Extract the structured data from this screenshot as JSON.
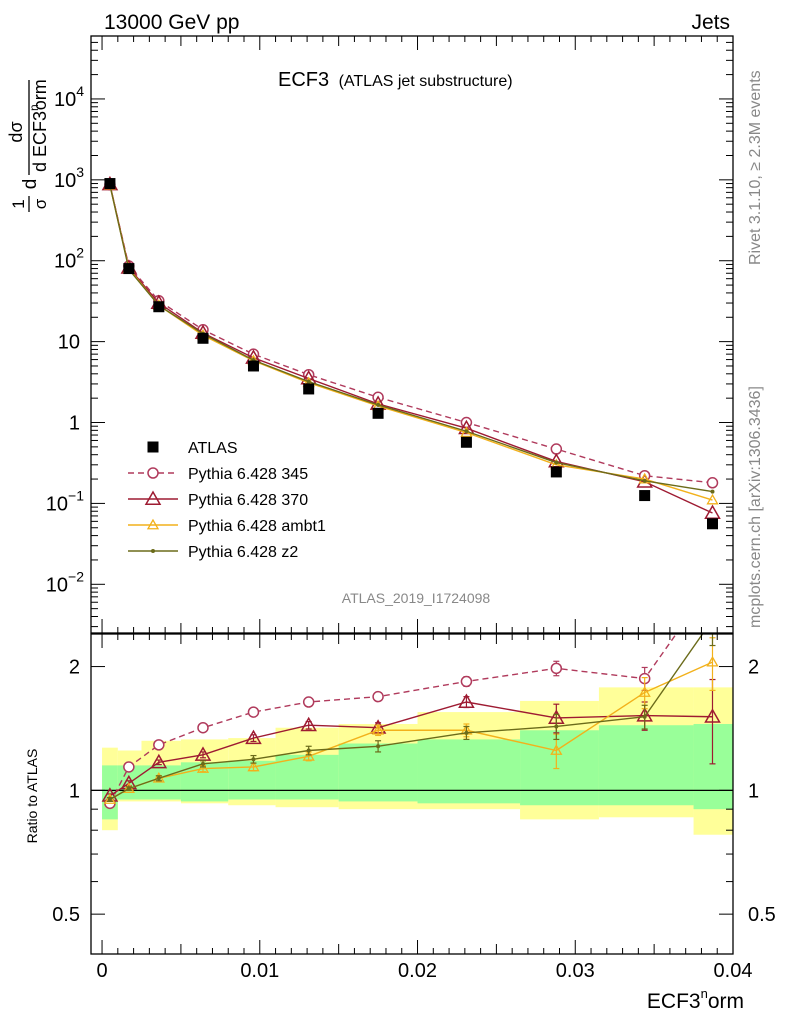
{
  "header": {
    "left": "13000 GeV pp",
    "right": "Jets"
  },
  "side": {
    "rivet": "Rivet 3.1.10, ≥ 2.3M events",
    "mcplots": "mcplots.cern.ch [arXiv:1306.3436]"
  },
  "main_title": "ECF3",
  "main_subtitle": "(ATLAS jet substructure)",
  "analysis_id": "ATLAS_2019_I1724098",
  "ylabel": {
    "frac_num": "1",
    "frac_den": "σ",
    "d_top": "d",
    "dsigma": "dσ",
    "d_ecf": "d ECF3",
    "sup": "n",
    "orm": "orm"
  },
  "xlabel": {
    "base": "ECF3",
    "sup": "n",
    "orm": "orm"
  },
  "ratio_label": "Ratio to ATLAS",
  "upper_ticks": [
    {
      "v": 0.01,
      "base": "10",
      "exp": "−2"
    },
    {
      "v": 0.1,
      "base": "10",
      "exp": "−1"
    },
    {
      "v": 1,
      "base": "1",
      "exp": ""
    },
    {
      "v": 10,
      "base": "10",
      "exp": ""
    },
    {
      "v": 100,
      "base": "10",
      "exp": "2"
    },
    {
      "v": 1000,
      "base": "10",
      "exp": "3"
    },
    {
      "v": 10000,
      "base": "10",
      "exp": "4"
    }
  ],
  "ratio_ticks": [
    {
      "v": 0.5,
      "label": "0.5"
    },
    {
      "v": 1,
      "label": "1"
    },
    {
      "v": 2,
      "label": "2"
    }
  ],
  "x_ticks": [
    {
      "v": 0,
      "label": "0"
    },
    {
      "v": 0.01,
      "label": "0.01"
    },
    {
      "v": 0.02,
      "label": "0.02"
    },
    {
      "v": 0.03,
      "label": "0.03"
    },
    {
      "v": 0.04,
      "label": "0.04"
    }
  ],
  "chart_data": {
    "type": "scatter",
    "xlim": [
      -0.0007,
      0.04
    ],
    "ylim_upper": [
      0.0025,
      60000
    ],
    "yscale_upper": "log",
    "ylim_ratio": [
      0.4,
      2.4
    ],
    "yscale_ratio": "log",
    "legend_position": "center-left",
    "bins": [
      [
        0.0,
        0.001
      ],
      [
        0.001,
        0.0025
      ],
      [
        0.0025,
        0.005
      ],
      [
        0.005,
        0.008
      ],
      [
        0.008,
        0.011
      ],
      [
        0.011,
        0.015
      ],
      [
        0.015,
        0.02
      ],
      [
        0.02,
        0.0265
      ],
      [
        0.0265,
        0.0315
      ],
      [
        0.0315,
        0.0375
      ],
      [
        0.0375,
        0.04
      ]
    ],
    "x": [
      0.0005,
      0.0017,
      0.0036,
      0.0064,
      0.0096,
      0.0131,
      0.0175,
      0.0231,
      0.0288,
      0.0344,
      0.0387
    ],
    "band_inner": [
      [
        0.85,
        1.15
      ],
      [
        0.95,
        1.15
      ],
      [
        0.95,
        1.15
      ],
      [
        0.94,
        1.17
      ],
      [
        0.95,
        1.18
      ],
      [
        0.95,
        1.22
      ],
      [
        0.94,
        1.3
      ],
      [
        0.93,
        1.33
      ],
      [
        0.92,
        1.4
      ],
      [
        0.92,
        1.44
      ],
      [
        0.9,
        1.45
      ]
    ],
    "band_outer": [
      [
        0.8,
        1.27
      ],
      [
        0.94,
        1.25
      ],
      [
        0.94,
        1.32
      ],
      [
        0.93,
        1.33
      ],
      [
        0.92,
        1.34
      ],
      [
        0.91,
        1.42
      ],
      [
        0.9,
        1.45
      ],
      [
        0.9,
        1.55
      ],
      [
        0.85,
        1.65
      ],
      [
        0.86,
        1.78
      ],
      [
        0.78,
        1.78
      ]
    ],
    "series": [
      {
        "name": "ATLAS",
        "color": "#000000",
        "marker": "square",
        "dash": "",
        "values": [
          900,
          80,
          27,
          11,
          5.0,
          2.6,
          1.3,
          0.57,
          0.245,
          0.125,
          0.056
        ],
        "ratio": [
          1,
          1,
          1,
          1,
          1,
          1,
          1,
          1,
          1,
          1,
          1
        ],
        "ratio_err": [
          0,
          0,
          0,
          0,
          0,
          0,
          0,
          0,
          0,
          0,
          0
        ]
      },
      {
        "name": "Pythia 6.428 345",
        "color": "#b03a5c",
        "marker": "circle",
        "dash": "6,4",
        "values": [
          870,
          86,
          32,
          14,
          7.0,
          3.9,
          2.05,
          1.0,
          0.47,
          0.22,
          0.18
        ],
        "ratio": [
          0.93,
          1.14,
          1.29,
          1.42,
          1.55,
          1.64,
          1.69,
          1.84,
          1.98,
          1.87,
          3.2
        ],
        "ratio_err": [
          0.015,
          0.015,
          0.015,
          0.02,
          0.02,
          0.025,
          0.035,
          0.05,
          0.08,
          0.12,
          0.3
        ]
      },
      {
        "name": "Pythia 6.428 370",
        "color": "#9e1b32",
        "marker": "triangle",
        "dash": "",
        "values": [
          880,
          82,
          30,
          12.8,
          6.3,
          3.5,
          1.7,
          0.85,
          0.33,
          0.185,
          0.076
        ],
        "ratio": [
          0.97,
          1.04,
          1.17,
          1.22,
          1.34,
          1.44,
          1.42,
          1.64,
          1.5,
          1.52,
          1.51
        ],
        "ratio_err": [
          0.01,
          0.015,
          0.015,
          0.02,
          0.025,
          0.03,
          0.04,
          0.05,
          0.12,
          0.12,
          0.35
        ]
      },
      {
        "name": "Pythia 6.428 ambt1",
        "color": "#f2b11b",
        "marker": "triangle-small",
        "dash": "",
        "values": [
          860,
          80,
          28,
          12,
          5.8,
          3.1,
          1.6,
          0.75,
          0.3,
          0.2,
          0.11
        ],
        "ratio": [
          0.95,
          1.01,
          1.07,
          1.13,
          1.14,
          1.21,
          1.4,
          1.4,
          1.25,
          1.73,
          2.05
        ],
        "ratio_err": [
          0.01,
          0.01,
          0.015,
          0.02,
          0.025,
          0.03,
          0.04,
          0.05,
          0.12,
          0.15,
          0.3
        ]
      },
      {
        "name": "Pythia 6.428 z2",
        "color": "#6b6b1a",
        "marker": "dot",
        "dash": "",
        "values": [
          860,
          78,
          28,
          12.5,
          5.9,
          3.2,
          1.65,
          0.78,
          0.32,
          0.19,
          0.14
        ],
        "ratio": [
          0.95,
          1.01,
          1.07,
          1.16,
          1.19,
          1.25,
          1.28,
          1.38,
          1.43,
          1.51,
          2.6
        ],
        "ratio_err": [
          0.01,
          0.01,
          0.015,
          0.02,
          0.025,
          0.03,
          0.04,
          0.05,
          0.1,
          0.1,
          0.35
        ]
      }
    ]
  }
}
